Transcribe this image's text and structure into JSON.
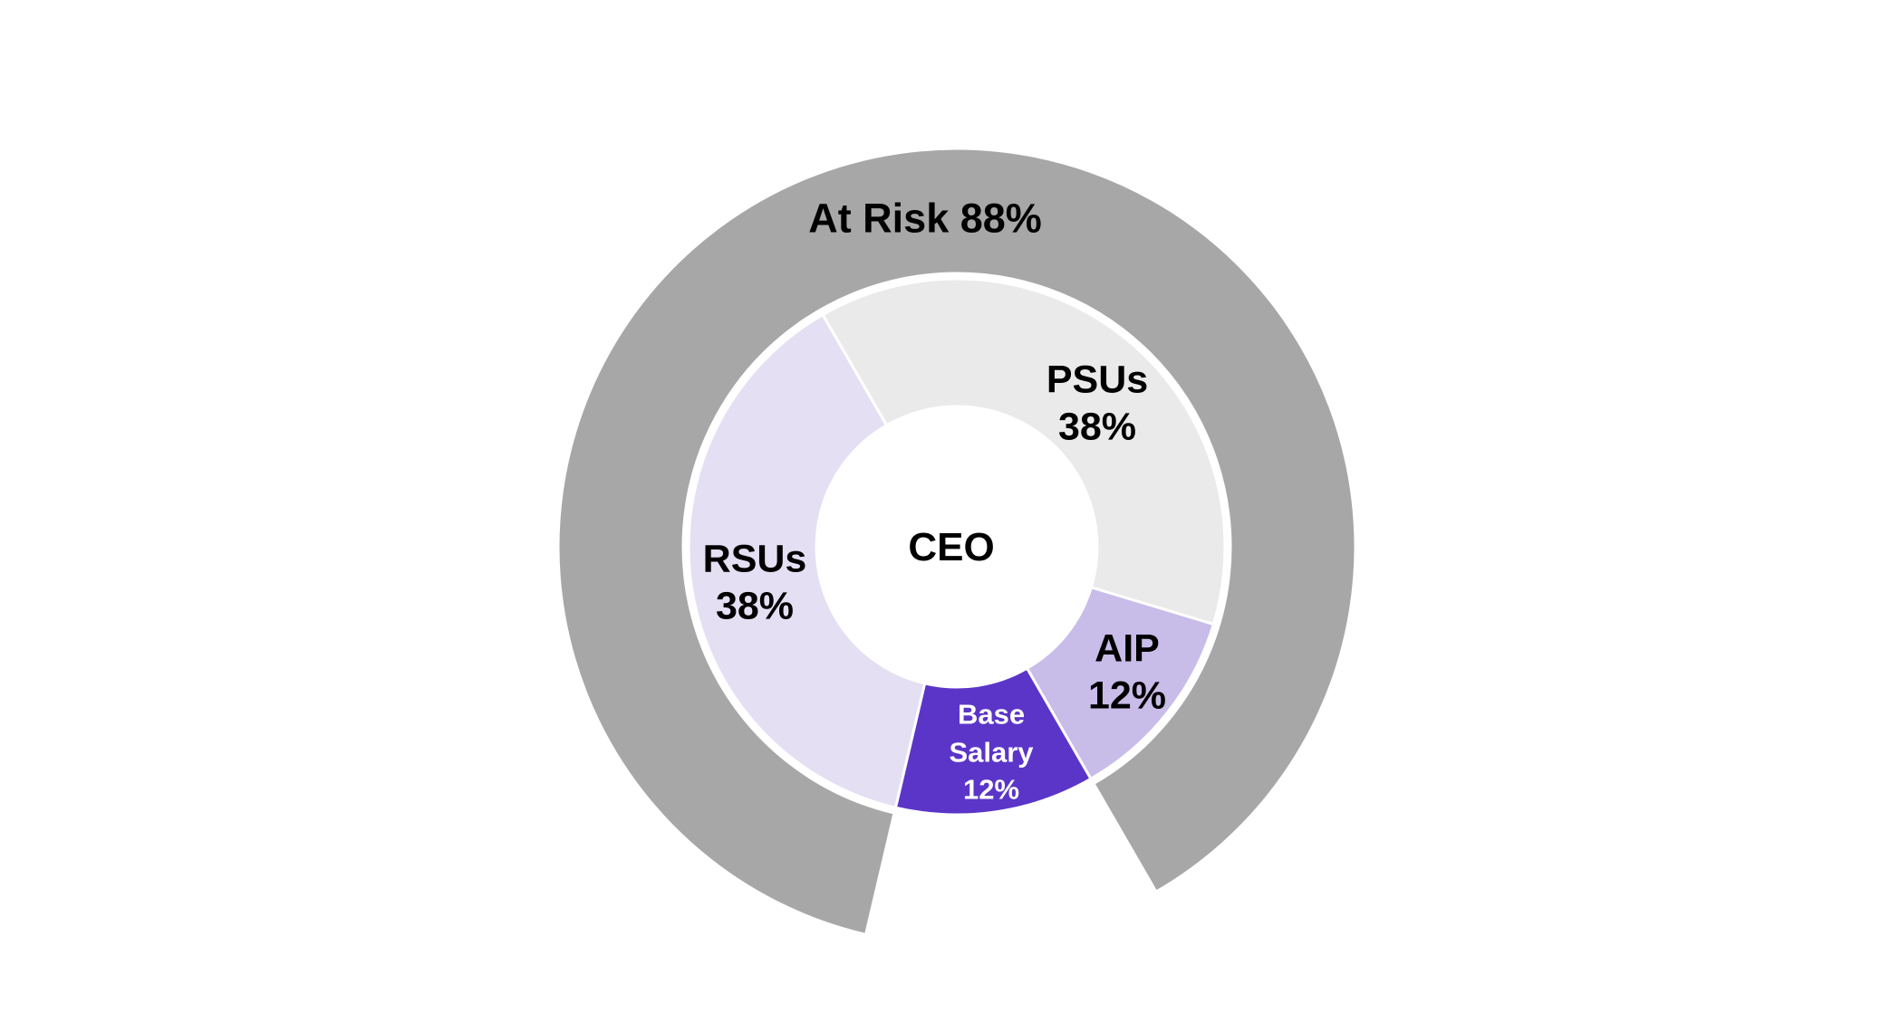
{
  "chart_data": {
    "type": "donut-nested",
    "description": "CEO pay mix doughnut chart: inner ring shows pay components, outer ring shows at-risk portion",
    "center_label": "CEO",
    "legend_position": "none",
    "grid": false,
    "inner_ring": {
      "start_angle_deg": -30,
      "direction": "clockwise",
      "segments": [
        {
          "name": "PSUs",
          "pct": 38,
          "label": "PSUs\n38%",
          "color": "#eaeaea",
          "text_color": "#000000"
        },
        {
          "name": "AIP",
          "pct": 12,
          "label": "AIP\n12%",
          "color": "#c8bce9",
          "text_color": "#000000"
        },
        {
          "name": "Base Salary",
          "pct": 12,
          "label": "Base\nSalary\n12%",
          "color": "#5b35c8",
          "text_color": "#ffffff"
        },
        {
          "name": "RSUs",
          "pct": 38,
          "label": "RSUs\n38%",
          "color": "#e5dff3",
          "text_color": "#000000"
        }
      ]
    },
    "outer_ring": {
      "start_angle_deg": 193.2,
      "direction": "clockwise",
      "segments": [
        {
          "name": "At Risk",
          "pct": 88,
          "label": "At Risk 88%",
          "color": "#a7a7a7",
          "text_color": "#000000"
        },
        {
          "name": "gap",
          "pct": 12,
          "label": "",
          "color": "none",
          "text_color": "#000000"
        }
      ]
    }
  }
}
